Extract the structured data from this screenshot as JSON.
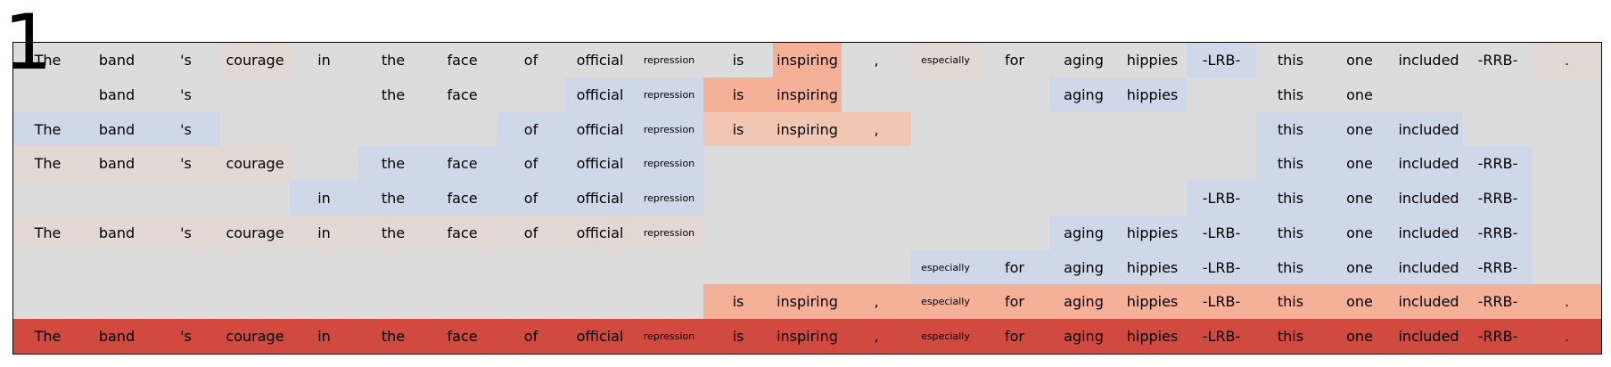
{
  "figure_number": "1",
  "tokens": [
    "The",
    "band",
    "'s",
    "courage",
    "in",
    "the",
    "face",
    "of",
    "official",
    "repression",
    "is",
    "inspiring",
    ",",
    "especially",
    "for",
    "aging",
    "hippies",
    "-LRB-",
    "this",
    "one",
    "included",
    "-RRB-",
    "."
  ],
  "palette": {
    "none": "#dcdcdc",
    "blue": "#cfd8e8",
    "beige": "#e2d9d5",
    "pale_orange": "#f1c7b3",
    "orange": "#f4b197",
    "red": "#d1493f"
  },
  "rows": [
    {
      "present": [
        1,
        1,
        1,
        1,
        1,
        1,
        1,
        1,
        1,
        1,
        1,
        1,
        1,
        1,
        1,
        1,
        1,
        1,
        1,
        1,
        1,
        1,
        1
      ],
      "colors": [
        "none",
        "none",
        "none",
        "beige",
        "none",
        "none",
        "none",
        "none",
        "none",
        "none",
        "none",
        "orange",
        "none",
        "beige",
        "none",
        "none",
        "none",
        "blue",
        "none",
        "none",
        "none",
        "none",
        "beige"
      ]
    },
    {
      "present": [
        0,
        1,
        1,
        0,
        0,
        1,
        1,
        0,
        1,
        1,
        1,
        1,
        0,
        0,
        0,
        1,
        1,
        0,
        1,
        1,
        0,
        0,
        0
      ],
      "colors": [
        "none",
        "none",
        "none",
        "none",
        "none",
        "none",
        "none",
        "none",
        "blue",
        "blue",
        "orange",
        "orange",
        "none",
        "none",
        "none",
        "blue",
        "blue",
        "none",
        "none",
        "none",
        "none",
        "none",
        "none"
      ]
    },
    {
      "present": [
        1,
        1,
        1,
        0,
        0,
        0,
        0,
        1,
        1,
        1,
        1,
        1,
        1,
        0,
        0,
        0,
        0,
        0,
        1,
        1,
        1,
        0,
        0
      ],
      "colors": [
        "blue",
        "blue",
        "blue",
        "none",
        "none",
        "none",
        "none",
        "blue",
        "blue",
        "blue",
        "pale_orange",
        "pale_orange",
        "pale_orange",
        "none",
        "none",
        "none",
        "none",
        "none",
        "blue",
        "blue",
        "blue",
        "none",
        "none"
      ]
    },
    {
      "present": [
        1,
        1,
        1,
        1,
        0,
        1,
        1,
        1,
        1,
        1,
        0,
        0,
        0,
        0,
        0,
        0,
        0,
        0,
        1,
        1,
        1,
        1,
        0
      ],
      "colors": [
        "beige",
        "beige",
        "beige",
        "beige",
        "none",
        "blue",
        "blue",
        "blue",
        "blue",
        "blue",
        "none",
        "none",
        "none",
        "none",
        "none",
        "none",
        "none",
        "none",
        "blue",
        "blue",
        "blue",
        "blue",
        "none"
      ]
    },
    {
      "present": [
        0,
        0,
        0,
        0,
        1,
        1,
        1,
        1,
        1,
        1,
        0,
        0,
        0,
        0,
        0,
        0,
        0,
        1,
        1,
        1,
        1,
        1,
        0
      ],
      "colors": [
        "none",
        "none",
        "none",
        "none",
        "blue",
        "blue",
        "blue",
        "blue",
        "blue",
        "blue",
        "none",
        "none",
        "none",
        "none",
        "none",
        "none",
        "none",
        "blue",
        "blue",
        "blue",
        "blue",
        "blue",
        "none"
      ]
    },
    {
      "present": [
        1,
        1,
        1,
        1,
        1,
        1,
        1,
        1,
        1,
        1,
        0,
        0,
        0,
        0,
        0,
        1,
        1,
        1,
        1,
        1,
        1,
        1,
        0
      ],
      "colors": [
        "beige",
        "beige",
        "beige",
        "beige",
        "beige",
        "beige",
        "beige",
        "beige",
        "beige",
        "beige",
        "none",
        "none",
        "none",
        "none",
        "none",
        "blue",
        "blue",
        "blue",
        "blue",
        "blue",
        "blue",
        "blue",
        "none"
      ]
    },
    {
      "present": [
        0,
        0,
        0,
        0,
        0,
        0,
        0,
        0,
        0,
        0,
        0,
        0,
        0,
        1,
        1,
        1,
        1,
        1,
        1,
        1,
        1,
        1,
        0
      ],
      "colors": [
        "none",
        "none",
        "none",
        "none",
        "none",
        "none",
        "none",
        "none",
        "none",
        "none",
        "none",
        "none",
        "none",
        "blue",
        "blue",
        "blue",
        "blue",
        "blue",
        "blue",
        "blue",
        "blue",
        "blue",
        "none"
      ]
    },
    {
      "present": [
        0,
        0,
        0,
        0,
        0,
        0,
        0,
        0,
        0,
        0,
        1,
        1,
        1,
        1,
        1,
        1,
        1,
        1,
        1,
        1,
        1,
        1,
        1
      ],
      "colors": [
        "none",
        "none",
        "none",
        "none",
        "none",
        "none",
        "none",
        "none",
        "none",
        "none",
        "orange",
        "orange",
        "orange",
        "orange",
        "orange",
        "orange",
        "orange",
        "orange",
        "orange",
        "orange",
        "orange",
        "orange",
        "orange"
      ]
    },
    {
      "present": [
        1,
        1,
        1,
        1,
        1,
        1,
        1,
        1,
        1,
        1,
        1,
        1,
        1,
        1,
        1,
        1,
        1,
        1,
        1,
        1,
        1,
        1,
        1
      ],
      "colors": [
        "red",
        "red",
        "red",
        "red",
        "red",
        "red",
        "red",
        "red",
        "red",
        "red",
        "red",
        "red",
        "red",
        "red",
        "red",
        "red",
        "red",
        "red",
        "red",
        "red",
        "red",
        "red",
        "red"
      ]
    }
  ]
}
